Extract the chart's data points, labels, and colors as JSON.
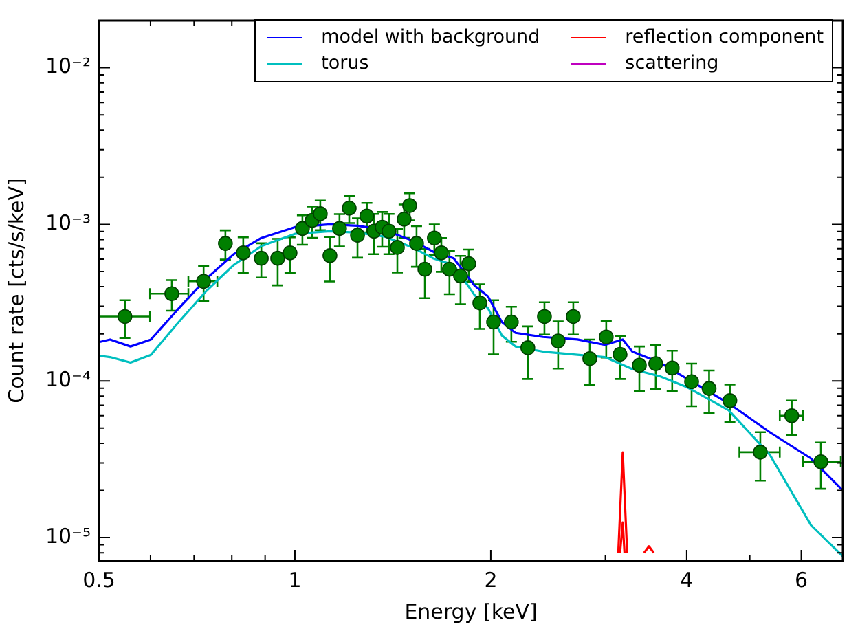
{
  "chart_data": {
    "type": "line",
    "xlabel": "Energy [keV]",
    "ylabel": "Count rate [cts/s/keV]",
    "log": "xy",
    "legend": "top right",
    "xlim": [
      0.5,
      6.95
    ],
    "ylim": [
      7.1e-06,
      0.02
    ],
    "xticks": [
      0.5,
      {
        "value": 0.6,
        "label": null
      },
      {
        "value": 0.7,
        "label": null
      },
      {
        "value": 0.8,
        "label": null
      },
      {
        "value": 0.9,
        "label": null
      },
      1,
      2,
      {
        "value": 3,
        "label": null
      },
      4,
      {
        "value": 5,
        "label": null
      },
      6
    ],
    "yticks": [
      {
        "value": 8e-06,
        "label": null
      },
      {
        "value": 9e-06,
        "label": null
      },
      {
        "value": 1e-05,
        "label": "10⁻⁵"
      },
      {
        "value": 2e-05,
        "label": null
      },
      {
        "value": 3e-05,
        "label": null
      },
      {
        "value": 4e-05,
        "label": null
      },
      {
        "value": 5e-05,
        "label": null
      },
      {
        "value": 6e-05,
        "label": null
      },
      {
        "value": 7e-05,
        "label": null
      },
      {
        "value": 8e-05,
        "label": null
      },
      {
        "value": 9e-05,
        "label": null
      },
      {
        "value": 0.0001,
        "label": "10⁻⁴"
      },
      {
        "value": 0.0002,
        "label": null
      },
      {
        "value": 0.0003,
        "label": null
      },
      {
        "value": 0.0004,
        "label": null
      },
      {
        "value": 0.0005,
        "label": null
      },
      {
        "value": 0.0006,
        "label": null
      },
      {
        "value": 0.0007,
        "label": null
      },
      {
        "value": 0.0008,
        "label": null
      },
      {
        "value": 0.0009,
        "label": null
      },
      {
        "value": 0.001,
        "label": "10⁻³"
      },
      {
        "value": 0.002,
        "label": null
      },
      {
        "value": 0.003,
        "label": null
      },
      {
        "value": 0.004,
        "label": null
      },
      {
        "value": 0.005,
        "label": null
      },
      {
        "value": 0.006,
        "label": null
      },
      {
        "value": 0.007,
        "label": null
      },
      {
        "value": 0.008,
        "label": null
      },
      {
        "value": 0.009,
        "label": null
      },
      {
        "value": 0.01,
        "label": "10⁻²"
      },
      {
        "value": 0.02,
        "label": null
      }
    ],
    "series": [
      {
        "type": "scatter",
        "marker": "circle",
        "color": "#007f00",
        "x": [
          0.548,
          0.647,
          0.724,
          0.782,
          0.833,
          0.888,
          0.941,
          0.983,
          1.027,
          1.063,
          1.094,
          1.132,
          1.171,
          1.212,
          1.248,
          1.29,
          1.323,
          1.362,
          1.395,
          1.437,
          1.472,
          1.501,
          1.538,
          1.584,
          1.638,
          1.679,
          1.728,
          1.797,
          1.85,
          1.924,
          2.02,
          2.151,
          2.28,
          2.418,
          2.538,
          2.678,
          2.839,
          3.009,
          3.16,
          3.383,
          3.585,
          3.8,
          4.07,
          4.33,
          4.66,
          5.19,
          5.8,
          6.43
        ],
        "values": [
          0.000258,
          0.000361,
          0.000433,
          0.000756,
          0.000658,
          0.000608,
          0.000608,
          0.000658,
          0.000942,
          0.00106,
          0.00117,
          0.000632,
          0.000942,
          0.00127,
          0.000853,
          0.00113,
          0.000905,
          0.00096,
          0.000905,
          0.000713,
          0.00108,
          0.00132,
          0.000756,
          0.000518,
          0.000819,
          0.000658,
          0.000518,
          0.000469,
          0.000561,
          0.000315,
          0.000238,
          0.000238,
          0.000163,
          0.000258,
          0.00018,
          0.000258,
          0.000139,
          0.000191,
          0.000148,
          0.000126,
          0.000129,
          0.000121,
          9.9e-05,
          8.96e-05,
          7.49e-05,
          3.51e-05,
          6e-05,
          3.05e-05
        ],
        "errors": [
          7e-05,
          8e-05,
          0.00011,
          0.00016,
          0.00017,
          0.00015,
          0.0002,
          0.00017,
          0.0002,
          0.00024,
          0.00025,
          0.0002,
          0.00022,
          0.00025,
          0.00024,
          0.00024,
          0.00026,
          0.00024,
          0.00026,
          0.00022,
          0.00026,
          0.00026,
          0.00022,
          0.00018,
          0.00018,
          0.00016,
          0.00016,
          0.00016,
          0.00013,
          0.0001,
          9e-05,
          6e-05,
          6e-05,
          6e-05,
          6e-05,
          6e-05,
          4.5e-05,
          5e-05,
          4.5e-05,
          4e-05,
          4e-05,
          3.5e-05,
          3e-05,
          2.7e-05,
          2e-05,
          1.2e-05,
          1.5e-05,
          1e-05
        ],
        "xerrors": [
          [
            0.5,
            0.599
          ],
          [
            0.599,
            0.686
          ],
          [
            0.686,
            0.76
          ],
          null,
          null,
          null,
          null,
          null,
          null,
          null,
          null,
          null,
          null,
          null,
          null,
          null,
          null,
          null,
          null,
          null,
          null,
          null,
          null,
          null,
          null,
          null,
          null,
          null,
          null,
          null,
          null,
          null,
          null,
          null,
          null,
          null,
          null,
          null,
          null,
          null,
          null,
          null,
          null,
          null,
          null,
          [
            4.82,
            5.56
          ],
          [
            5.56,
            6.04
          ],
          [
            6.04,
            6.9
          ]
        ]
      },
      {
        "name": "model with background",
        "color": "#0000ff",
        "x": [
          0.5,
          0.52,
          0.559,
          0.601,
          0.663,
          0.731,
          0.805,
          0.888,
          1.0,
          1.132,
          1.248,
          1.375,
          1.516,
          1.63,
          1.754,
          1.887,
          1.981,
          2.08,
          2.183,
          2.406,
          2.717,
          2.995,
          3.19,
          3.3,
          3.64,
          4.01,
          4.64,
          5.37,
          6.21,
          6.95
        ],
        "values": [
          0.000177,
          0.000184,
          0.000166,
          0.000184,
          0.000291,
          0.00045,
          0.000645,
          0.000819,
          0.00096,
          0.001,
          0.00098,
          0.00092,
          0.000787,
          0.000671,
          0.000608,
          0.000408,
          0.000347,
          0.000238,
          0.000203,
          0.000191,
          0.000184,
          0.00017,
          0.000184,
          0.000154,
          0.000131,
          0.000103,
          7.2e-05,
          4.7e-05,
          3.2e-05,
          2e-05
        ]
      },
      {
        "name": "torus",
        "color": "#00bfbf",
        "x": [
          0.5,
          0.52,
          0.559,
          0.601,
          0.663,
          0.731,
          0.805,
          0.888,
          1.0,
          1.132,
          1.248,
          1.375,
          1.516,
          1.63,
          1.754,
          1.887,
          1.981,
          2.08,
          2.183,
          2.406,
          2.717,
          2.995,
          3.3,
          3.64,
          4.01,
          4.64,
          5.37,
          6.21,
          6.95
        ],
        "values": [
          0.000145,
          0.000142,
          0.000131,
          0.000147,
          0.000238,
          0.000376,
          0.00055,
          0.000727,
          0.00087,
          0.000905,
          0.000887,
          0.000835,
          0.000713,
          0.000608,
          0.00055,
          0.000355,
          0.000291,
          0.000195,
          0.000166,
          0.000154,
          0.000147,
          0.000142,
          0.000119,
          0.000107,
          9.1e-05,
          6.5e-05,
          3.37e-05,
          1.2e-05,
          7.6e-06
        ]
      },
      {
        "name": "reflection component",
        "color": "#ff0000",
        "x": [
          3.14,
          3.19,
          3.24
        ],
        "values": [
          8e-06,
          3.5e-05,
          8e-06
        ]
      },
      {
        "color": "#ff0000",
        "x": [
          3.16,
          3.19,
          3.21
        ],
        "values": [
          8e-06,
          1.25e-05,
          8e-06
        ]
      },
      {
        "color": "#ff0000",
        "x": [
          3.44,
          3.5,
          3.56
        ],
        "values": [
          8e-06,
          8.8e-06,
          8e-06
        ]
      },
      {
        "name": "scattering",
        "color": "#bf00bf"
      }
    ]
  }
}
